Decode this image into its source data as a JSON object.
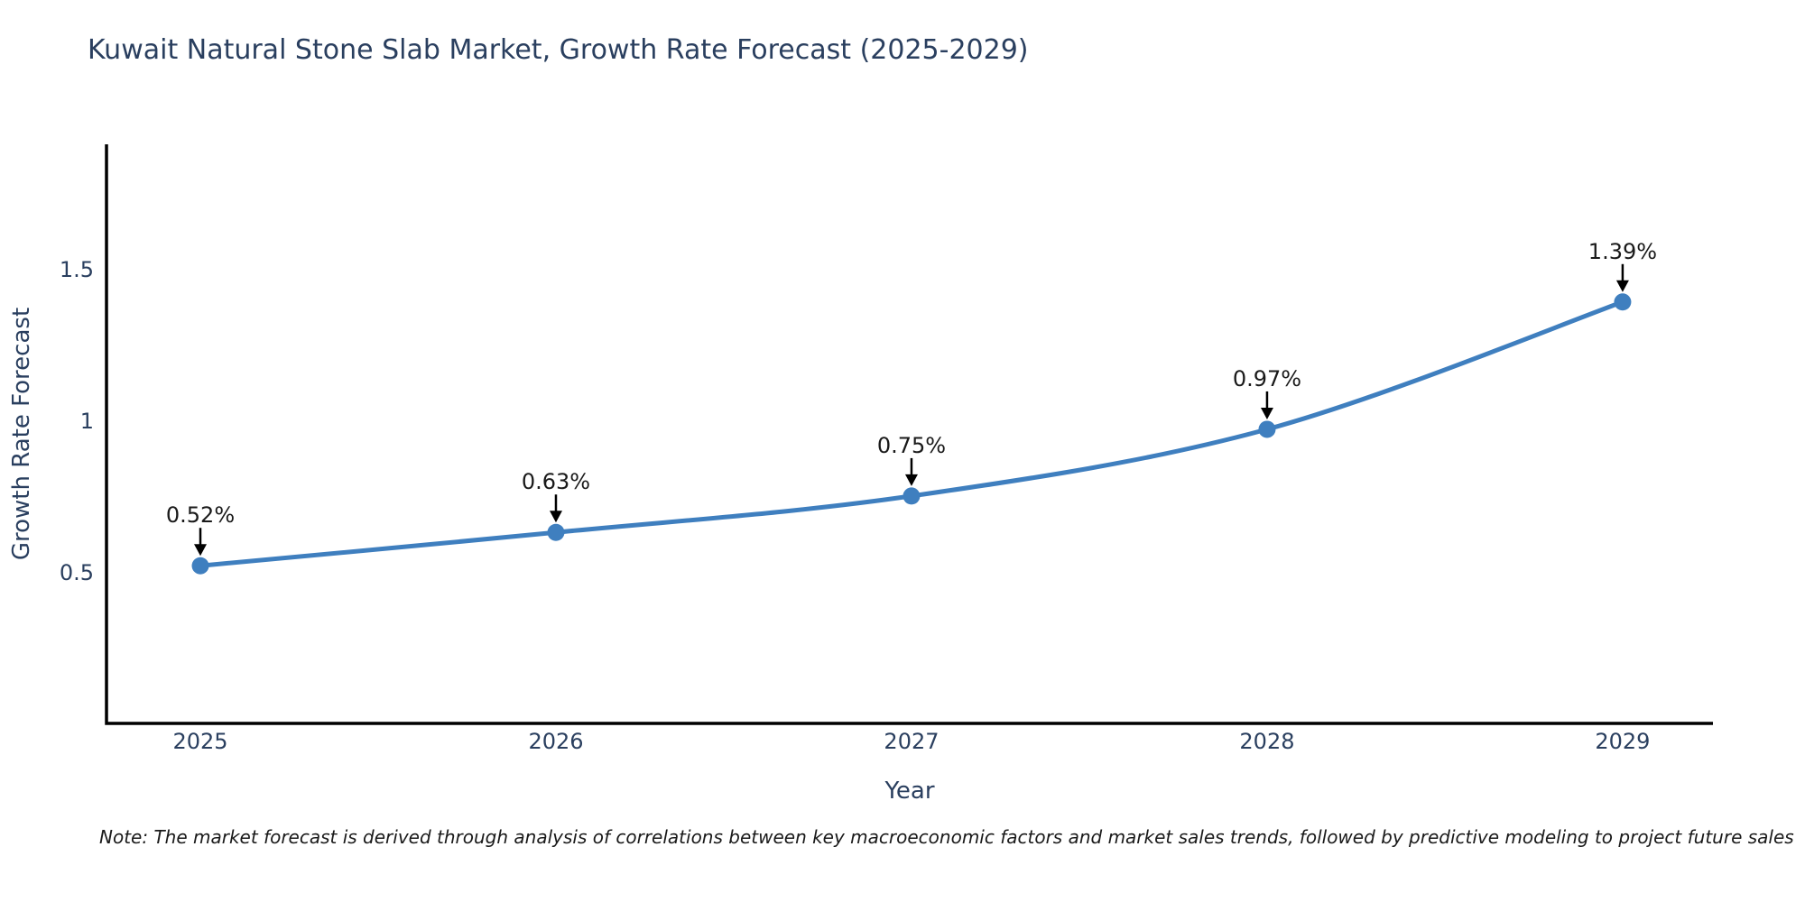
{
  "chart_data": {
    "type": "line",
    "title": "Kuwait Natural Stone Slab Market, Growth Rate Forecast (2025-2029)",
    "xlabel": "Year",
    "ylabel": "Growth Rate Forecast",
    "x": [
      2025,
      2026,
      2027,
      2028,
      2029
    ],
    "values": [
      0.52,
      0.63,
      0.75,
      0.97,
      1.39
    ],
    "point_labels": [
      "0.52%",
      "0.63%",
      "0.75%",
      "0.97%",
      "1.39%"
    ],
    "x_tick_labels": [
      "2025",
      "2026",
      "2027",
      "2028",
      "2029"
    ],
    "y_ticks": [
      {
        "value": 0.5,
        "label": "0.5"
      },
      {
        "value": 1.0,
        "label": "1"
      },
      {
        "value": 1.5,
        "label": "1.5"
      }
    ],
    "x_range": [
      2024.736,
      2029.254
    ],
    "y_range": [
      0,
      1.91
    ],
    "grid": false,
    "legend": "none",
    "line_shape": "spline",
    "line_color": "#3f7fbf",
    "marker_color": "#3f7fbf",
    "arrow_color": "#000000",
    "axis_color": "#000000",
    "text_color": "#2a3f5f",
    "annotation_text_color": "#1a1a1a"
  },
  "note": "Note: The market forecast is derived through analysis of correlations between key macroeconomic factors and market sales trends, followed by predictive modeling to project future sales"
}
